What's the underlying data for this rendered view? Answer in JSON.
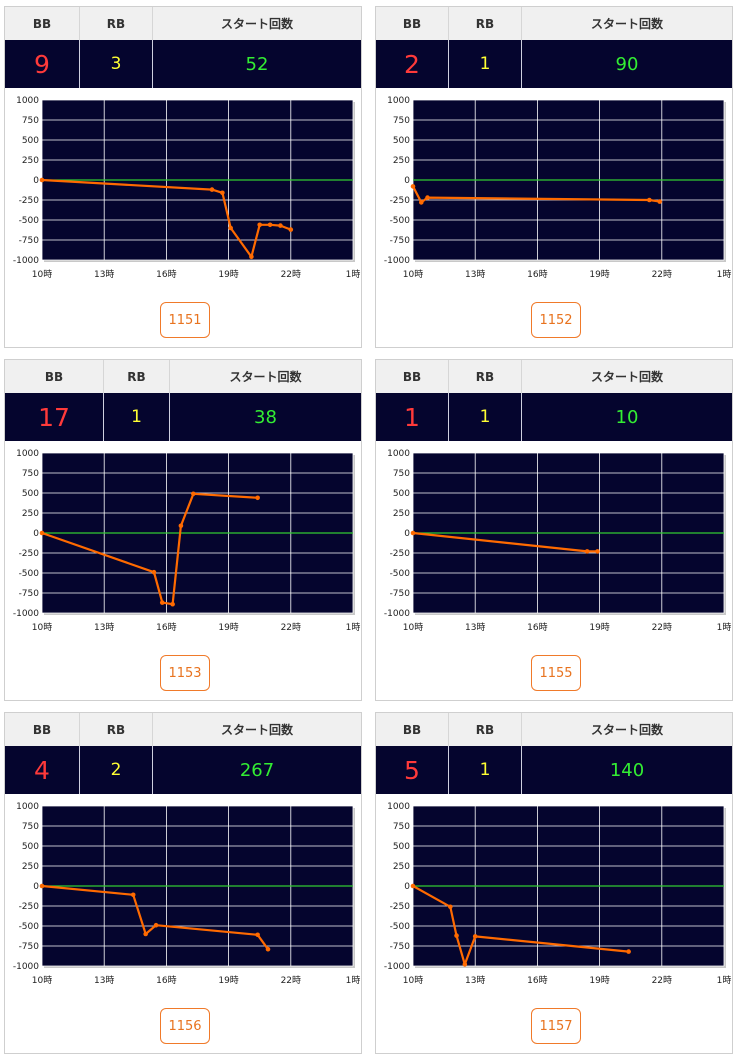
{
  "headers": {
    "bb": "BB",
    "rb": "RB",
    "starts": "スタート回数"
  },
  "y_ticks": [
    "1000",
    "750",
    "500",
    "250",
    "0",
    "-250",
    "-500",
    "-750",
    "-1000"
  ],
  "x_ticks": [
    "10時",
    "13時",
    "16時",
    "19時",
    "22時",
    "1時"
  ],
  "colors": {
    "line": "#ff6a00",
    "zero_line": "#33cc33",
    "plot_bg": "#05052e",
    "grid": "#ffffff"
  },
  "panels": [
    {
      "bb": "9",
      "rb": "3",
      "starts": "52",
      "machine": "1151"
    },
    {
      "bb": "2",
      "rb": "1",
      "starts": "90",
      "machine": "1152"
    },
    {
      "bb": "17",
      "rb": "1",
      "starts": "38",
      "machine": "1153"
    },
    {
      "bb": "1",
      "rb": "1",
      "starts": "10",
      "machine": "1155"
    },
    {
      "bb": "4",
      "rb": "2",
      "starts": "267",
      "machine": "1156"
    },
    {
      "bb": "5",
      "rb": "1",
      "starts": "140",
      "machine": "1157"
    }
  ],
  "chart_data": [
    {
      "type": "line",
      "xlim": [
        10,
        25
      ],
      "ylim": [
        -1000,
        1000
      ],
      "grid": true,
      "x": [
        10,
        18.2,
        18.7,
        19.1,
        20.1,
        20.5,
        21.0,
        21.5,
        22.0
      ],
      "y": [
        0,
        -120,
        -160,
        -600,
        -960,
        -560,
        -560,
        -570,
        -620
      ]
    },
    {
      "type": "line",
      "xlim": [
        10,
        25
      ],
      "ylim": [
        -1000,
        1000
      ],
      "grid": true,
      "x": [
        10,
        10.4,
        10.7,
        21.4,
        21.9
      ],
      "y": [
        -80,
        -280,
        -220,
        -250,
        -270
      ]
    },
    {
      "type": "line",
      "xlim": [
        10,
        25
      ],
      "ylim": [
        -1000,
        1000
      ],
      "grid": true,
      "x": [
        10,
        15.4,
        15.8,
        16.3,
        16.7,
        17.3,
        20.4
      ],
      "y": [
        0,
        -490,
        -870,
        -890,
        90,
        490,
        440
      ]
    },
    {
      "type": "line",
      "xlim": [
        10,
        25
      ],
      "ylim": [
        -1000,
        1000
      ],
      "grid": true,
      "x": [
        10,
        18.4,
        18.9
      ],
      "y": [
        0,
        -230,
        -230
      ]
    },
    {
      "type": "line",
      "xlim": [
        10,
        25
      ],
      "ylim": [
        -1000,
        1000
      ],
      "grid": true,
      "x": [
        10,
        14.4,
        15.0,
        15.5,
        20.4,
        20.9
      ],
      "y": [
        0,
        -110,
        -600,
        -490,
        -610,
        -790
      ]
    },
    {
      "type": "line",
      "xlim": [
        10,
        25
      ],
      "ylim": [
        -1000,
        1000
      ],
      "grid": true,
      "x": [
        10,
        11.8,
        12.1,
        12.5,
        13.0,
        20.4
      ],
      "y": [
        0,
        -260,
        -620,
        -980,
        -630,
        -820
      ]
    }
  ]
}
